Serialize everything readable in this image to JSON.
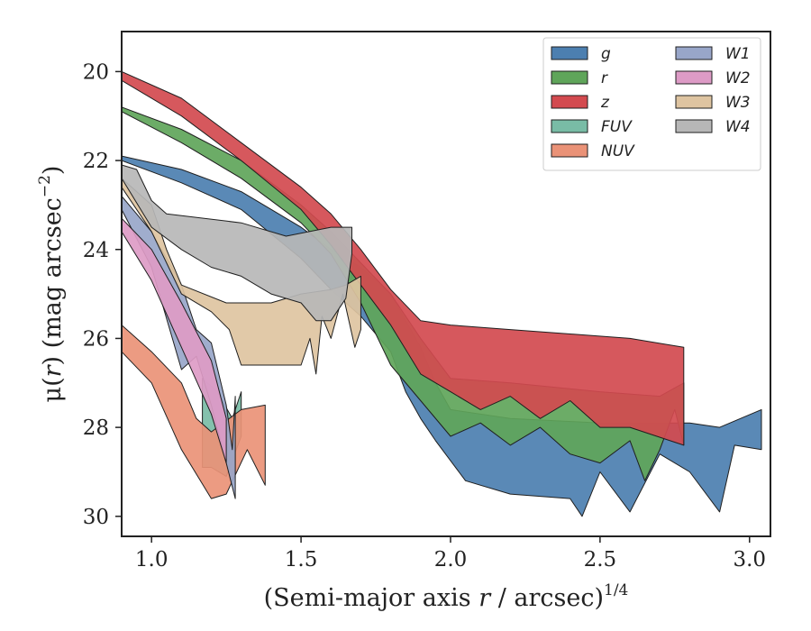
{
  "chart_data": {
    "type": "area",
    "xlabel_main": "(Semi-major axis ",
    "xlabel_var": "r",
    "xlabel_unit": " / arcsec)",
    "xlabel_exp": "1/4",
    "ylabel_main": "μ(",
    "ylabel_var": "r",
    "ylabel_unit": ") (mag arcsec",
    "ylabel_exp": "−2",
    "ylabel_end": ")",
    "xlim": [
      0.9,
      3.07
    ],
    "ylim": [
      30.45,
      19.1
    ],
    "x_ticks": [
      1.0,
      1.5,
      2.0,
      2.5,
      3.0
    ],
    "x_tick_labels": [
      "1.0",
      "1.5",
      "2.0",
      "2.5",
      "3.0"
    ],
    "y_ticks": [
      20,
      22,
      24,
      26,
      28,
      30
    ],
    "y_tick_labels": [
      "20",
      "22",
      "24",
      "26",
      "28",
      "30"
    ],
    "grid": false,
    "legend_position": "top-right",
    "legend_columns": 2,
    "series": [
      {
        "name": "g",
        "color": "#4c7fb0",
        "upper": [
          [
            0.9,
            21.9
          ],
          [
            1.1,
            22.2
          ],
          [
            1.3,
            22.7
          ],
          [
            1.5,
            23.5
          ],
          [
            1.6,
            24.0
          ],
          [
            1.7,
            24.4
          ],
          [
            1.8,
            25.0
          ],
          [
            1.9,
            26.2
          ],
          [
            1.95,
            27.0
          ],
          [
            2.0,
            27.6
          ],
          [
            2.2,
            27.8
          ],
          [
            2.5,
            27.9
          ],
          [
            2.8,
            27.9
          ],
          [
            2.9,
            28.0
          ],
          [
            3.04,
            27.6
          ]
        ],
        "lower": [
          [
            3.04,
            28.5
          ],
          [
            2.95,
            28.4
          ],
          [
            2.9,
            29.9
          ],
          [
            2.8,
            29.0
          ],
          [
            2.7,
            28.6
          ],
          [
            2.6,
            29.9
          ],
          [
            2.5,
            29.0
          ],
          [
            2.44,
            30.0
          ],
          [
            2.4,
            29.6
          ],
          [
            2.2,
            29.5
          ],
          [
            2.05,
            29.2
          ],
          [
            1.95,
            28.3
          ],
          [
            1.9,
            27.8
          ],
          [
            1.85,
            27.2
          ],
          [
            1.8,
            26.3
          ],
          [
            1.7,
            25.5
          ],
          [
            1.6,
            24.9
          ],
          [
            1.5,
            24.2
          ],
          [
            1.3,
            23.1
          ],
          [
            1.1,
            22.5
          ],
          [
            0.9,
            22.0
          ]
        ]
      },
      {
        "name": "r",
        "color": "#5fa55a",
        "upper": [
          [
            0.9,
            20.8
          ],
          [
            1.1,
            21.3
          ],
          [
            1.3,
            22.0
          ],
          [
            1.5,
            23.0
          ],
          [
            1.6,
            23.6
          ],
          [
            1.7,
            24.3
          ],
          [
            1.8,
            25.0
          ],
          [
            1.9,
            26.0
          ],
          [
            2.0,
            26.9
          ],
          [
            2.2,
            27.0
          ],
          [
            2.5,
            27.2
          ],
          [
            2.7,
            27.3
          ],
          [
            2.78,
            27.0
          ]
        ],
        "lower": [
          [
            2.78,
            28.4
          ],
          [
            2.75,
            27.6
          ],
          [
            2.7,
            28.5
          ],
          [
            2.65,
            29.2
          ],
          [
            2.6,
            28.3
          ],
          [
            2.5,
            28.8
          ],
          [
            2.4,
            28.6
          ],
          [
            2.3,
            28.0
          ],
          [
            2.2,
            28.4
          ],
          [
            2.1,
            27.9
          ],
          [
            2.0,
            28.2
          ],
          [
            1.9,
            27.4
          ],
          [
            1.8,
            26.6
          ],
          [
            1.7,
            25.2
          ],
          [
            1.6,
            24.1
          ],
          [
            1.5,
            23.4
          ],
          [
            1.3,
            22.4
          ],
          [
            1.1,
            21.6
          ],
          [
            0.9,
            20.9
          ]
        ]
      },
      {
        "name": "z",
        "color": "#d34a4f",
        "upper": [
          [
            0.9,
            20.0
          ],
          [
            1.1,
            20.6
          ],
          [
            1.3,
            21.6
          ],
          [
            1.5,
            22.6
          ],
          [
            1.6,
            23.2
          ],
          [
            1.7,
            24.0
          ],
          [
            1.8,
            24.9
          ],
          [
            1.9,
            25.6
          ],
          [
            2.0,
            25.7
          ],
          [
            2.2,
            25.8
          ],
          [
            2.4,
            25.9
          ],
          [
            2.6,
            26.0
          ],
          [
            2.78,
            26.2
          ]
        ],
        "lower": [
          [
            2.78,
            28.4
          ],
          [
            2.6,
            28.0
          ],
          [
            2.5,
            28.0
          ],
          [
            2.4,
            27.4
          ],
          [
            2.3,
            27.8
          ],
          [
            2.2,
            27.3
          ],
          [
            2.1,
            27.6
          ],
          [
            2.0,
            27.2
          ],
          [
            1.9,
            26.8
          ],
          [
            1.8,
            25.7
          ],
          [
            1.7,
            24.8
          ],
          [
            1.6,
            23.9
          ],
          [
            1.5,
            23.1
          ],
          [
            1.3,
            22.0
          ],
          [
            1.1,
            21.0
          ],
          [
            0.9,
            20.2
          ]
        ]
      },
      {
        "name": "FUV",
        "color": "#79bca6",
        "upper": [
          [
            1.17,
            26.9
          ],
          [
            1.22,
            27.2
          ],
          [
            1.27,
            27.8
          ],
          [
            1.3,
            27.2
          ]
        ],
        "lower": [
          [
            1.3,
            28.2
          ],
          [
            1.25,
            29.1
          ],
          [
            1.2,
            28.9
          ],
          [
            1.17,
            28.9
          ]
        ]
      },
      {
        "name": "NUV",
        "color": "#ea9277",
        "upper": [
          [
            0.9,
            25.7
          ],
          [
            1.0,
            26.3
          ],
          [
            1.1,
            27.0
          ],
          [
            1.15,
            27.8
          ],
          [
            1.2,
            28.1
          ],
          [
            1.3,
            27.6
          ],
          [
            1.38,
            27.5
          ]
        ],
        "lower": [
          [
            1.38,
            29.3
          ],
          [
            1.32,
            28.5
          ],
          [
            1.25,
            29.5
          ],
          [
            1.2,
            29.6
          ],
          [
            1.1,
            28.5
          ],
          [
            1.0,
            27.0
          ],
          [
            0.9,
            26.3
          ]
        ]
      },
      {
        "name": "W1",
        "color": "#98a6c9",
        "upper": [
          [
            0.9,
            22.8
          ],
          [
            1.0,
            23.6
          ],
          [
            1.1,
            24.8
          ],
          [
            1.15,
            25.8
          ],
          [
            1.2,
            26.1
          ],
          [
            1.25,
            27.5
          ],
          [
            1.27,
            28.5
          ],
          [
            1.28,
            27.3
          ]
        ],
        "lower": [
          [
            1.28,
            29.6
          ],
          [
            1.25,
            28.8
          ],
          [
            1.2,
            27.5
          ],
          [
            1.15,
            26.4
          ],
          [
            1.1,
            26.7
          ],
          [
            1.0,
            24.4
          ],
          [
            0.9,
            23.1
          ]
        ]
      },
      {
        "name": "W2",
        "color": "#dd9bc6",
        "upper": [
          [
            0.9,
            23.3
          ],
          [
            1.0,
            24.0
          ],
          [
            1.1,
            25.2
          ],
          [
            1.2,
            26.5
          ],
          [
            1.25,
            27.8
          ]
        ],
        "lower": [
          [
            1.25,
            28.8
          ],
          [
            1.2,
            27.7
          ],
          [
            1.1,
            26.2
          ],
          [
            1.0,
            24.7
          ],
          [
            0.9,
            23.6
          ]
        ]
      },
      {
        "name": "W3",
        "color": "#dec4a1",
        "upper": [
          [
            0.9,
            22.4
          ],
          [
            1.0,
            23.0
          ],
          [
            1.05,
            24.0
          ],
          [
            1.1,
            24.8
          ],
          [
            1.25,
            25.2
          ],
          [
            1.4,
            25.2
          ],
          [
            1.5,
            25.0
          ],
          [
            1.6,
            24.9
          ],
          [
            1.65,
            24.8
          ],
          [
            1.7,
            24.6
          ]
        ],
        "lower": [
          [
            1.7,
            25.8
          ],
          [
            1.68,
            26.2
          ],
          [
            1.64,
            25.0
          ],
          [
            1.6,
            26.0
          ],
          [
            1.57,
            25.5
          ],
          [
            1.55,
            26.8
          ],
          [
            1.53,
            26.0
          ],
          [
            1.5,
            26.6
          ],
          [
            1.4,
            26.6
          ],
          [
            1.3,
            26.6
          ],
          [
            1.26,
            25.8
          ],
          [
            1.2,
            25.4
          ],
          [
            1.1,
            25.0
          ],
          [
            1.0,
            23.6
          ],
          [
            0.9,
            22.6
          ]
        ]
      },
      {
        "name": "W4",
        "color": "#b7b7b7",
        "upper": [
          [
            0.9,
            22.1
          ],
          [
            0.95,
            22.2
          ],
          [
            1.0,
            22.9
          ],
          [
            1.05,
            23.2
          ],
          [
            1.3,
            23.4
          ],
          [
            1.45,
            23.7
          ],
          [
            1.6,
            23.5
          ],
          [
            1.67,
            23.5
          ]
        ],
        "lower": [
          [
            1.67,
            24.1
          ],
          [
            1.65,
            25.1
          ],
          [
            1.6,
            25.6
          ],
          [
            1.55,
            25.6
          ],
          [
            1.5,
            25.2
          ],
          [
            1.4,
            25.0
          ],
          [
            1.3,
            24.6
          ],
          [
            1.2,
            24.4
          ],
          [
            1.1,
            24.0
          ],
          [
            1.0,
            23.5
          ],
          [
            0.9,
            22.4
          ]
        ]
      }
    ]
  }
}
